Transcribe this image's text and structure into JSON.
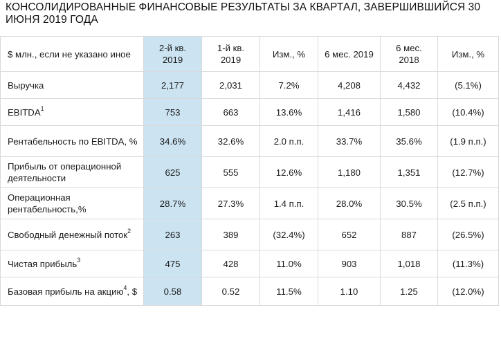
{
  "title": "КОНСОЛИДИРОВАННЫЕ ФИНАНСОВЫЕ РЕЗУЛЬТАТЫ ЗА КВАРТАЛ, ЗАВЕРШИВШИЙСЯ 30 ИЮНЯ 2019 ГОДА",
  "highlight_color": "#cce4f2",
  "header": {
    "label": "$ млн., если не указано иное",
    "q2_2019": "2-й кв. 2019",
    "q1_2019": "1-й кв. 2019",
    "change_q": "Изм., %",
    "h1_2019": "6 мес. 2019",
    "h1_2018": "6 мес. 2018",
    "change_h": "Изм., %"
  },
  "rows": [
    {
      "label": "Выручка",
      "sup": "",
      "suffix": "",
      "q2_2019": "2,177",
      "q1_2019": "2,031",
      "change_q": "7.2%",
      "h1_2019": "4,208",
      "h1_2018": "4,432",
      "change_h": "(5.1%)"
    },
    {
      "label": "EBITDA",
      "sup": "1",
      "suffix": "",
      "q2_2019": "753",
      "q1_2019": "663",
      "change_q": "13.6%",
      "h1_2019": "1,416",
      "h1_2018": "1,580",
      "change_h": "(10.4%)"
    },
    {
      "label": "Рентабельность по EBITDA, %",
      "sup": "",
      "suffix": "",
      "q2_2019": "34.6%",
      "q1_2019": "32.6%",
      "change_q": "2.0 п.п.",
      "h1_2019": "33.7%",
      "h1_2018": "35.6%",
      "change_h": "(1.9 п.п.)"
    },
    {
      "label": "Прибыль от операционной деятельности",
      "sup": "",
      "suffix": "",
      "q2_2019": "625",
      "q1_2019": "555",
      "change_q": "12.6%",
      "h1_2019": "1,180",
      "h1_2018": "1,351",
      "change_h": "(12.7%)"
    },
    {
      "label": "Операционная рентабельность,%",
      "sup": "",
      "suffix": "",
      "q2_2019": "28.7%",
      "q1_2019": "27.3%",
      "change_q": "1.4 п.п.",
      "h1_2019": "28.0%",
      "h1_2018": "30.5%",
      "change_h": "(2.5 п.п.)"
    },
    {
      "label": "Свободный денежный поток",
      "sup": "2",
      "suffix": "",
      "q2_2019": "263",
      "q1_2019": "389",
      "change_q": "(32.4%)",
      "h1_2019": "652",
      "h1_2018": "887",
      "change_h": "(26.5%)"
    },
    {
      "label": "Чистая прибыль",
      "sup": "3",
      "suffix": "",
      "q2_2019": "475",
      "q1_2019": "428",
      "change_q": "11.0%",
      "h1_2019": "903",
      "h1_2018": "1,018",
      "change_h": "(11.3%)"
    },
    {
      "label": "Базовая прибыль на акцию",
      "sup": "4",
      "suffix": ", $",
      "q2_2019": "0.58",
      "q1_2019": "0.52",
      "change_q": "11.5%",
      "h1_2019": "1.10",
      "h1_2018": "1.25",
      "change_h": "(12.0%)"
    }
  ]
}
